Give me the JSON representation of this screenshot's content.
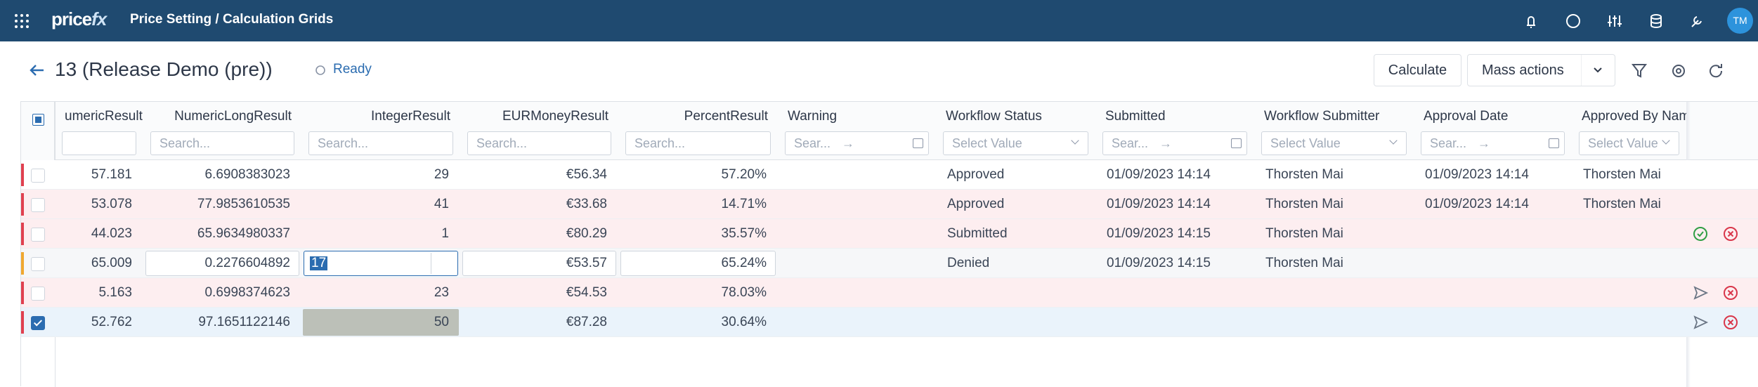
{
  "app": {
    "brand_main": "price",
    "brand_accent": "fx",
    "breadcrumb": "Price Setting / Calculation Grids",
    "user_initials": "TM"
  },
  "page": {
    "title": "13 (Release Demo (pre))",
    "status": "Ready",
    "buttons": [
      "Calculate",
      "Mass actions"
    ]
  },
  "table": {
    "columns": [
      {
        "header": "umericResult",
        "align": "right",
        "filter": "input"
      },
      {
        "header": "NumericLongResult",
        "align": "right",
        "filter": "Search..."
      },
      {
        "header": "IntegerResult",
        "align": "right",
        "filter": "Search..."
      },
      {
        "header": "EURMoneyResult",
        "align": "right",
        "filter": "Search..."
      },
      {
        "header": "PercentResult",
        "align": "right",
        "filter": "Search..."
      },
      {
        "header": "Warning",
        "align": "left",
        "filter": "Sear..."
      },
      {
        "header": "Workflow Status",
        "align": "left",
        "filter": "Select Value"
      },
      {
        "header": "Submitted",
        "align": "left",
        "filter": "Sear..."
      },
      {
        "header": "Workflow Submitter",
        "align": "left",
        "filter": "Select Value"
      },
      {
        "header": "Approval Date",
        "align": "left",
        "filter": "Sear..."
      },
      {
        "header": "Approved By Nam",
        "align": "left",
        "filter": "Select Value"
      }
    ],
    "rows": [
      {
        "stripe": "#e0404f",
        "background": "#ffffff",
        "checked": false,
        "cells": [
          "57.181",
          "6.6908383023",
          "29",
          "€56.34",
          "57.20%",
          null,
          "Approved",
          "01/09/2023 14:14",
          "Thorsten Mai",
          "01/09/2023 14:14",
          "Thorsten Mai"
        ]
      },
      {
        "stripe": "#e0404f",
        "background": "#fdeef0",
        "checked": false,
        "cells": [
          "53.078",
          "77.9853610535",
          "41",
          "€33.68",
          "14.71%",
          null,
          "Approved",
          "01/09/2023 14:14",
          "Thorsten Mai",
          "01/09/2023 14:14",
          "Thorsten Mai"
        ]
      },
      {
        "stripe": "#e0404f",
        "background": "#fdeef0",
        "checked": false,
        "actions": "approve",
        "cells": [
          "44.023",
          "65.9634980337",
          "1",
          "€80.29",
          "35.57%",
          null,
          "Submitted",
          "01/09/2023 14:15",
          "Thorsten Mai",
          null,
          null
        ]
      },
      {
        "stripe": "#f0a830",
        "background": "#f6f7f9",
        "checked": false,
        "editing": true,
        "cells": [
          "65.009",
          "0.2276604892",
          "17",
          "€53.57",
          "65.24%",
          null,
          "Denied",
          "01/09/2023 14:15",
          "Thorsten Mai",
          null,
          null
        ]
      },
      {
        "stripe": "#e0404f",
        "background": "#fdeef0",
        "checked": false,
        "actions": "submit",
        "cells": [
          "5.163",
          "0.6998374623",
          "23",
          "€54.53",
          "78.03%",
          null,
          null,
          null,
          null,
          null,
          null
        ]
      },
      {
        "stripe": "#e0404f",
        "background": "#eaf3fb",
        "checked": true,
        "actions": "submit",
        "cells": [
          "52.762",
          "97.1651122146",
          "50",
          "€87.28",
          "30.64%",
          null,
          null,
          null,
          null,
          null,
          null
        ]
      }
    ]
  }
}
